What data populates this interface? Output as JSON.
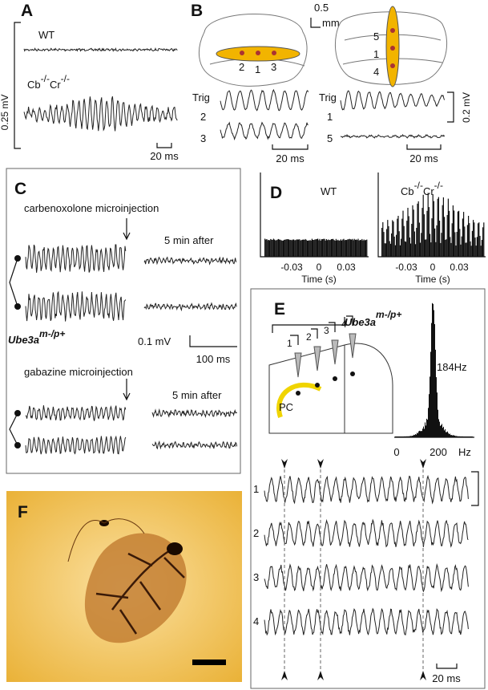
{
  "panels": {
    "A": {
      "label": "A",
      "wt": "WT",
      "mutant": [
        "Cb",
        "-/-",
        "Cr",
        "-/-"
      ],
      "scale_v": "0.25 mV",
      "scale_t": "20 ms"
    },
    "B": {
      "label": "B",
      "scale": "0.5",
      "scale_unit": "mm",
      "left_electrodes": [
        "2",
        "1",
        "3"
      ],
      "right_electrodes": [
        "5",
        "1",
        "4"
      ],
      "left_traces": [
        "Trig",
        "2",
        "3"
      ],
      "right_traces": [
        "Trig",
        "1",
        "5"
      ],
      "scale_t_left": "20 ms",
      "scale_t_right": "20 ms",
      "scale_v": "0.2 mV"
    },
    "C": {
      "label": "C",
      "injection1": "carbenoxolone microinjection",
      "after1": "5 min after",
      "genotype": "Ube3a",
      "genotype_sup": "m-/p+",
      "scale_v": "0.1 mV",
      "scale_t": "100 ms",
      "injection2": "gabazine microinjection",
      "after2": "5 min after"
    },
    "D": {
      "label": "D",
      "wt": "WT",
      "mutant": [
        "Cb",
        "-/-",
        "Cr",
        "-/-"
      ],
      "left_xticks": [
        "-0.03",
        "0",
        "0.03"
      ],
      "right_xticks": [
        "-0.03",
        "0",
        "0.03"
      ],
      "left_xlabel": "Time (s)",
      "right_xlabel": "Time (s)"
    },
    "E": {
      "label": "E",
      "genotype": "Ube3a",
      "genotype_sup": "m-/p+",
      "electrodes": [
        "1",
        "2",
        "3",
        "4"
      ],
      "pc": "PC",
      "peak": "184Hz",
      "xticks": [
        "0",
        "200"
      ],
      "xunit": "Hz",
      "trace_labels": [
        "1",
        "2",
        "3",
        "4"
      ],
      "scale_t": "20 ms"
    },
    "F": {
      "label": "F"
    }
  }
}
